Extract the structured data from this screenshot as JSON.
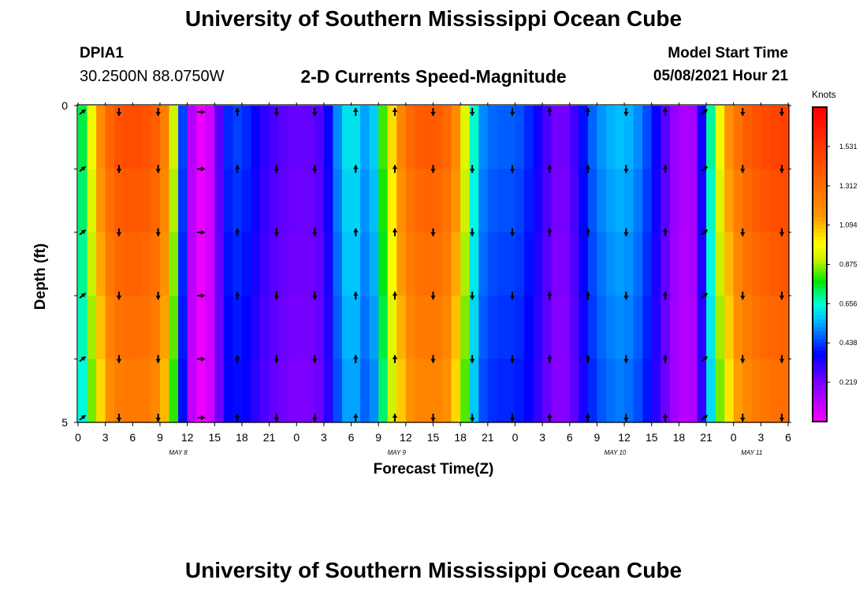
{
  "title": "University of Southern Mississippi Ocean Cube",
  "station": "DPIA1",
  "coordinates": "30.2500N  88.0750W",
  "subtitle": "2-D Currents Speed-Magnitude",
  "model_start_label": "Model Start Time",
  "model_start_value": "05/08/2021 Hour 21",
  "chart_data": {
    "type": "heatmap",
    "xlabel": "Forecast Time(Z)",
    "ylabel": "Depth (ft)",
    "colorbar_label": "Knots",
    "ylim": [
      0,
      5
    ],
    "y_tick_labels": [
      "0",
      "5"
    ],
    "x_tick_labels": [
      "0",
      "3",
      "6",
      "9",
      "12",
      "15",
      "18",
      "21",
      "0",
      "3",
      "6",
      "9",
      "12",
      "15",
      "18",
      "21",
      "0",
      "3",
      "6",
      "9",
      "12",
      "15",
      "18",
      "21",
      "0",
      "3",
      "6"
    ],
    "date_labels": [
      {
        "text": "MAY 8",
        "hour": 11
      },
      {
        "text": "MAY 9",
        "hour": 35
      },
      {
        "text": "MAY 10",
        "hour": 59
      },
      {
        "text": "MAY 11",
        "hour": 74
      }
    ],
    "hour_range": [
      0,
      78
    ],
    "colorbar_ticks": [
      "0.219",
      "0.438",
      "0.656",
      "0.875",
      "1.094",
      "1.312",
      "1.531"
    ],
    "colorbar_range": [
      0,
      1.75
    ],
    "speed_by_hour_knots": [
      0.65,
      0.85,
      1.1,
      1.3,
      1.42,
      1.45,
      1.45,
      1.45,
      1.42,
      1.35,
      1.15,
      0.7,
      0.2,
      0.05,
      0.02,
      0.15,
      0.4,
      0.45,
      0.45,
      0.4,
      0.35,
      0.3,
      0.28,
      0.26,
      0.25,
      0.25,
      0.26,
      0.3,
      0.45,
      0.6,
      0.65,
      0.6,
      0.5,
      0.7,
      0.95,
      1.15,
      1.3,
      1.38,
      1.4,
      1.4,
      1.38,
      1.3,
      1.1,
      0.8,
      0.55,
      0.5,
      0.48,
      0.48,
      0.48,
      0.45,
      0.4,
      0.33,
      0.25,
      0.22,
      0.25,
      0.35,
      0.45,
      0.52,
      0.55,
      0.58,
      0.58,
      0.55,
      0.5,
      0.42,
      0.33,
      0.22,
      0.15,
      0.13,
      0.18,
      0.55,
      0.85,
      1.1,
      1.25,
      1.35,
      1.42,
      1.45,
      1.48,
      1.5,
      1.5
    ],
    "arrow_directions_by_hour": [
      {
        "hour": 0.5,
        "dir": "ne"
      },
      {
        "hour": 4.5,
        "dir": "s"
      },
      {
        "hour": 8.8,
        "dir": "s"
      },
      {
        "hour": 13.5,
        "dir": "e"
      },
      {
        "hour": 17.5,
        "dir": "n"
      },
      {
        "hour": 21.8,
        "dir": "s"
      },
      {
        "hour": 26.0,
        "dir": "s"
      },
      {
        "hour": 30.5,
        "dir": "n"
      },
      {
        "hour": 34.8,
        "dir": "n"
      },
      {
        "hour": 39.0,
        "dir": "s"
      },
      {
        "hour": 43.3,
        "dir": "s"
      },
      {
        "hour": 47.7,
        "dir": "s"
      },
      {
        "hour": 51.8,
        "dir": "n"
      },
      {
        "hour": 56.0,
        "dir": "n"
      },
      {
        "hour": 60.2,
        "dir": "s"
      },
      {
        "hour": 64.5,
        "dir": "n"
      },
      {
        "hour": 68.8,
        "dir": "ne"
      },
      {
        "hour": 73.0,
        "dir": "s"
      },
      {
        "hour": 77.3,
        "dir": "s"
      }
    ]
  }
}
